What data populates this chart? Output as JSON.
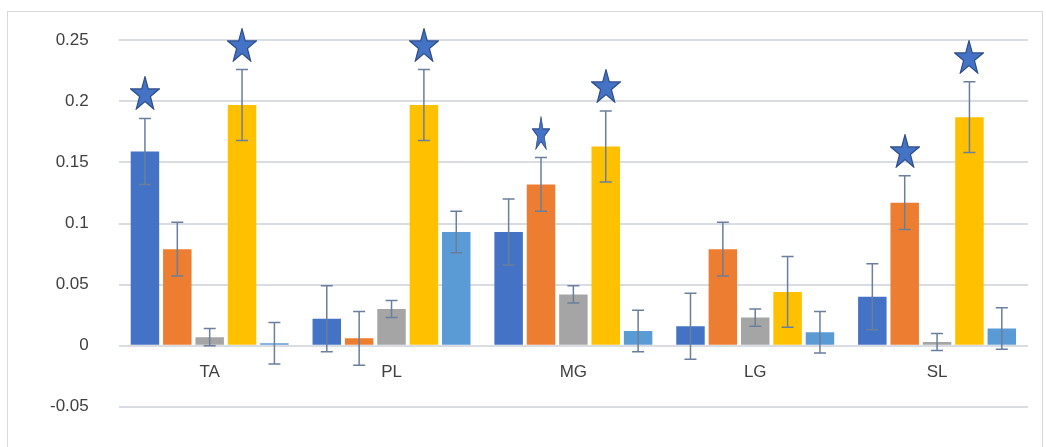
{
  "chart_data": {
    "type": "bar",
    "categories": [
      "TA",
      "PL",
      "MG",
      "LG",
      "SL"
    ],
    "series": [
      {
        "color": "#4472c4",
        "values": [
          0.159,
          0.022,
          0.093,
          0.016,
          0.04
        ],
        "errors": [
          0.027,
          0.027,
          0.027,
          0.027,
          0.027
        ]
      },
      {
        "color": "#ed7d31",
        "values": [
          0.079,
          0.006,
          0.132,
          0.079,
          0.117
        ],
        "errors": [
          0.022,
          0.022,
          0.022,
          0.022,
          0.022
        ]
      },
      {
        "color": "#a5a5a5",
        "values": [
          0.007,
          0.03,
          0.042,
          0.023,
          0.003
        ],
        "errors": [
          0.007,
          0.007,
          0.007,
          0.007,
          0.007
        ]
      },
      {
        "color": "#ffc000",
        "values": [
          0.197,
          0.197,
          0.163,
          0.044,
          0.187
        ],
        "errors": [
          0.029,
          0.029,
          0.029,
          0.029,
          0.029
        ]
      },
      {
        "color": "#5b9bd5",
        "values": [
          0.002,
          0.093,
          0.012,
          0.011,
          0.014
        ],
        "errors": [
          0.017,
          0.017,
          0.017,
          0.017,
          0.017
        ]
      }
    ],
    "ylim": [
      -0.05,
      0.25
    ],
    "yticks": [
      -0.05,
      0,
      0.05,
      0.1,
      0.15,
      0.2,
      0.25
    ],
    "grid": "y",
    "legend": false
  }
}
